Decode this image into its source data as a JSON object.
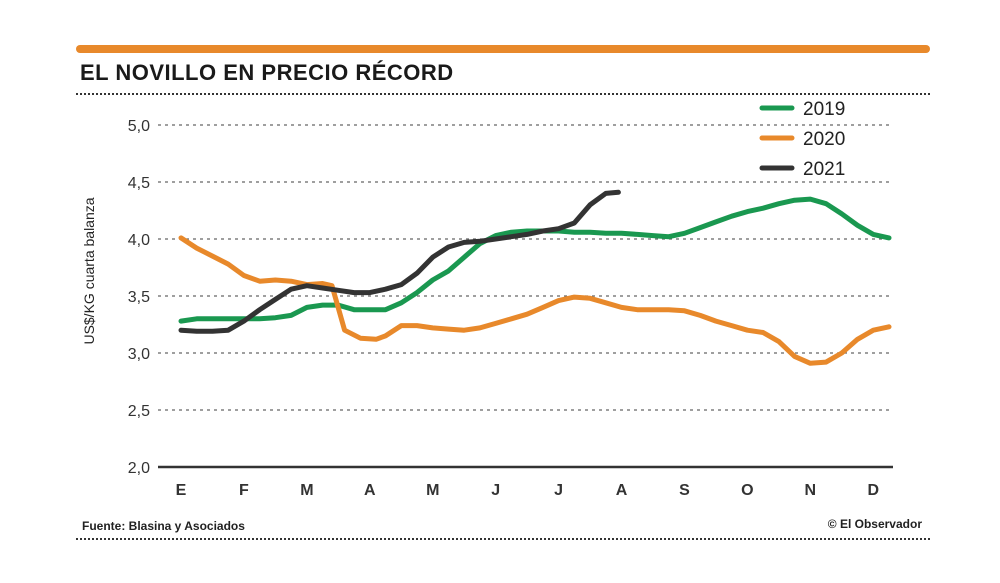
{
  "title": "EL NOVILLO EN PRECIO RÉCORD",
  "source": "Fuente: Blasina y Asociados",
  "credit": "© El Observador",
  "chart_data": {
    "type": "line",
    "title": "EL NOVILLO EN PRECIO RÉCORD",
    "xlabel": "",
    "ylabel": "US$/KG cuarta balanza",
    "ylim": [
      2.0,
      5.0
    ],
    "yticks": [
      2.0,
      2.5,
      3.0,
      3.5,
      4.0,
      4.5,
      5.0
    ],
    "ytick_labels": [
      "2,0",
      "2,5",
      "3,0",
      "3,5",
      "4,0",
      "4,5",
      "5,0"
    ],
    "categories": [
      "E",
      "F",
      "M",
      "A",
      "M",
      "J",
      "J",
      "A",
      "S",
      "O",
      "N",
      "D"
    ],
    "x_range": [
      0,
      11.25
    ],
    "grid": true,
    "legend_position": "top-right",
    "series": [
      {
        "name": "2019",
        "color": "#1a9850",
        "x": [
          0,
          0.25,
          0.5,
          0.75,
          1.0,
          1.25,
          1.5,
          1.75,
          2.0,
          2.25,
          2.5,
          2.75,
          3.0,
          3.25,
          3.5,
          3.75,
          4.0,
          4.25,
          4.5,
          4.75,
          5.0,
          5.25,
          5.5,
          5.75,
          6.0,
          6.25,
          6.5,
          6.75,
          7.0,
          7.25,
          7.5,
          7.75,
          8.0,
          8.25,
          8.5,
          8.75,
          9.0,
          9.25,
          9.5,
          9.75,
          10.0,
          10.25,
          10.5,
          10.75,
          11.0,
          11.25
        ],
        "y": [
          3.28,
          3.3,
          3.3,
          3.3,
          3.3,
          3.3,
          3.31,
          3.33,
          3.4,
          3.42,
          3.42,
          3.38,
          3.38,
          3.38,
          3.44,
          3.53,
          3.64,
          3.72,
          3.84,
          3.96,
          4.03,
          4.06,
          4.07,
          4.07,
          4.07,
          4.06,
          4.06,
          4.05,
          4.05,
          4.04,
          4.03,
          4.02,
          4.05,
          4.1,
          4.15,
          4.2,
          4.24,
          4.27,
          4.31,
          4.34,
          4.35,
          4.31,
          4.22,
          4.12,
          4.04,
          4.01
        ]
      },
      {
        "name": "2020",
        "color": "#e8892b",
        "x": [
          0,
          0.25,
          0.5,
          0.75,
          1.0,
          1.25,
          1.5,
          1.75,
          2.0,
          2.25,
          2.4,
          2.6,
          2.85,
          3.1,
          3.25,
          3.5,
          3.75,
          4.0,
          4.25,
          4.5,
          4.75,
          5.0,
          5.25,
          5.5,
          5.75,
          6.0,
          6.25,
          6.5,
          6.75,
          7.0,
          7.25,
          7.5,
          7.75,
          8.0,
          8.25,
          8.5,
          8.75,
          9.0,
          9.25,
          9.5,
          9.75,
          10.0,
          10.25,
          10.5,
          10.75,
          11.0,
          11.25
        ],
        "y": [
          4.01,
          3.92,
          3.85,
          3.78,
          3.68,
          3.63,
          3.64,
          3.63,
          3.6,
          3.61,
          3.59,
          3.2,
          3.13,
          3.12,
          3.15,
          3.24,
          3.24,
          3.22,
          3.21,
          3.2,
          3.22,
          3.26,
          3.3,
          3.34,
          3.4,
          3.46,
          3.49,
          3.48,
          3.44,
          3.4,
          3.38,
          3.38,
          3.38,
          3.37,
          3.33,
          3.28,
          3.24,
          3.2,
          3.18,
          3.1,
          2.97,
          2.91,
          2.92,
          3.0,
          3.12,
          3.2,
          3.23
        ]
      },
      {
        "name": "2021",
        "color": "#333333",
        "x": [
          0,
          0.25,
          0.5,
          0.75,
          1.0,
          1.25,
          1.5,
          1.75,
          2.0,
          2.25,
          2.5,
          2.75,
          3.0,
          3.25,
          3.5,
          3.75,
          4.0,
          4.25,
          4.5,
          4.75,
          5.0,
          5.25,
          5.5,
          5.75,
          6.0,
          6.25,
          6.5,
          6.75,
          6.95
        ],
        "y": [
          3.2,
          3.19,
          3.19,
          3.2,
          3.28,
          3.38,
          3.47,
          3.56,
          3.59,
          3.57,
          3.55,
          3.53,
          3.53,
          3.56,
          3.6,
          3.7,
          3.84,
          3.93,
          3.97,
          3.98,
          4.0,
          4.02,
          4.04,
          4.07,
          4.09,
          4.14,
          4.3,
          4.4,
          4.41
        ]
      }
    ]
  }
}
